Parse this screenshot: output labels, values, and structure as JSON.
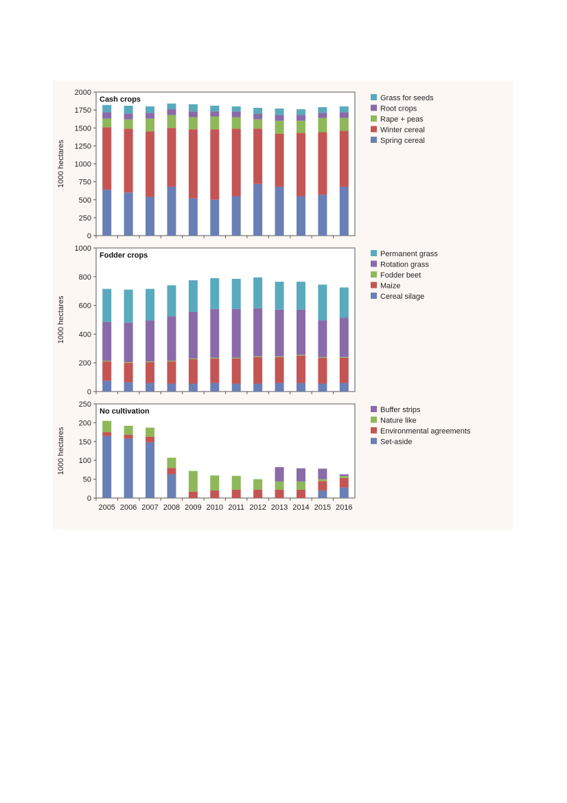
{
  "chart_data": [
    {
      "type": "bar",
      "stacked": true,
      "title": "Cash crops",
      "ylabel": "1000 hectares",
      "ylim": [
        0,
        2000
      ],
      "yticks": [
        "0",
        "250",
        "500",
        "750",
        "1000",
        "1250",
        "1500",
        "1750",
        "2000"
      ],
      "categories": [
        "2005",
        "2006",
        "2007",
        "2008",
        "2009",
        "2010",
        "2011",
        "2012",
        "2013",
        "2014",
        "2015",
        "2016"
      ],
      "legend_position": "right",
      "series": [
        {
          "name": "Spring cereal",
          "color": "#6a7fb5",
          "values": [
            640,
            600,
            540,
            680,
            520,
            500,
            550,
            720,
            680,
            550,
            570,
            680
          ]
        },
        {
          "name": "Winter cereal",
          "color": "#c45555",
          "values": [
            870,
            890,
            910,
            820,
            960,
            980,
            940,
            770,
            740,
            880,
            870,
            780
          ]
        },
        {
          "name": "Rape + peas",
          "color": "#8fb85a",
          "values": [
            120,
            130,
            180,
            180,
            170,
            180,
            160,
            130,
            180,
            170,
            200,
            180
          ]
        },
        {
          "name": "Root crops",
          "color": "#8a6aa8",
          "values": [
            90,
            80,
            80,
            80,
            80,
            70,
            80,
            80,
            80,
            80,
            70,
            80
          ]
        },
        {
          "name": "Grass for seeds",
          "color": "#5aaabd",
          "values": [
            100,
            110,
            90,
            80,
            100,
            80,
            70,
            80,
            90,
            80,
            80,
            80
          ]
        }
      ]
    },
    {
      "type": "bar",
      "stacked": true,
      "title": "Fodder crops",
      "ylabel": "1000 hectares",
      "ylim": [
        0,
        1000
      ],
      "yticks": [
        "0",
        "200",
        "400",
        "600",
        "800",
        "1000"
      ],
      "categories": [
        "2005",
        "2006",
        "2007",
        "2008",
        "2009",
        "2010",
        "2011",
        "2012",
        "2013",
        "2014",
        "2015",
        "2016"
      ],
      "legend_position": "right",
      "series": [
        {
          "name": "Cereal silage",
          "color": "#6a7fb5",
          "values": [
            75,
            65,
            60,
            55,
            55,
            60,
            55,
            55,
            60,
            60,
            55,
            60
          ]
        },
        {
          "name": "Maize",
          "color": "#c45555",
          "values": [
            135,
            135,
            145,
            155,
            170,
            170,
            175,
            185,
            180,
            190,
            180,
            175
          ]
        },
        {
          "name": "Fodder beet",
          "color": "#8fb85a",
          "values": [
            5,
            5,
            5,
            5,
            5,
            5,
            5,
            5,
            5,
            5,
            5,
            5
          ]
        },
        {
          "name": "Rotation grass",
          "color": "#8a6aa8",
          "values": [
            270,
            275,
            285,
            310,
            325,
            340,
            340,
            335,
            325,
            315,
            255,
            275
          ]
        },
        {
          "name": "Permanent grass",
          "color": "#5aaabd",
          "values": [
            230,
            230,
            220,
            215,
            220,
            215,
            210,
            215,
            195,
            195,
            250,
            210
          ]
        }
      ]
    },
    {
      "type": "bar",
      "stacked": true,
      "title": "No cultivation",
      "ylabel": "1000 hectares",
      "ylim": [
        0,
        250
      ],
      "yticks": [
        "0",
        "50",
        "100",
        "150",
        "200",
        "250"
      ],
      "categories": [
        "2005",
        "2006",
        "2007",
        "2008",
        "2009",
        "2010",
        "2011",
        "2012",
        "2013",
        "2014",
        "2015",
        "2016"
      ],
      "legend_position": "right",
      "series": [
        {
          "name": "Set-aside",
          "color": "#6a7fb5",
          "values": [
            165,
            158,
            148,
            63,
            0,
            0,
            0,
            0,
            0,
            0,
            20,
            28
          ]
        },
        {
          "name": "Environmental agreements",
          "color": "#c45555",
          "values": [
            10,
            10,
            15,
            17,
            17,
            20,
            22,
            22,
            22,
            22,
            25,
            25
          ]
        },
        {
          "name": "Nature like",
          "color": "#8fb85a",
          "values": [
            30,
            24,
            24,
            27,
            55,
            40,
            37,
            28,
            22,
            22,
            5,
            5
          ]
        },
        {
          "name": "Buffer strips",
          "color": "#8a6aa8",
          "values": [
            0,
            0,
            0,
            0,
            0,
            0,
            0,
            0,
            38,
            35,
            28,
            5
          ]
        }
      ]
    }
  ]
}
